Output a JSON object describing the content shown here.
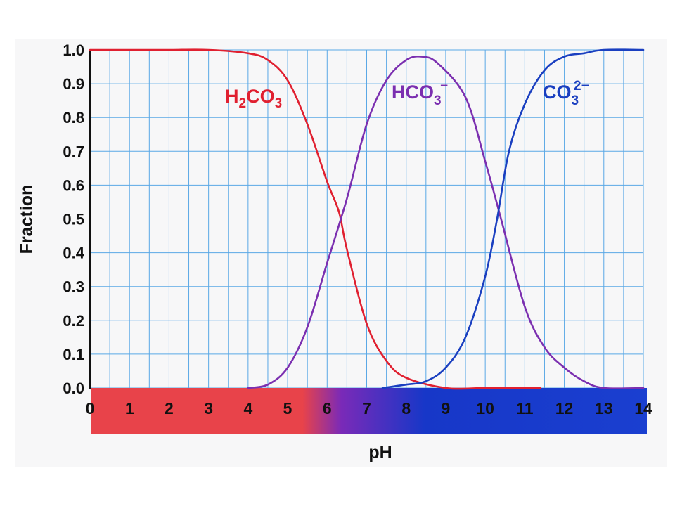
{
  "chart_data": {
    "type": "line",
    "xlabel": "pH",
    "ylabel": "Fraction",
    "xlim": [
      0,
      14
    ],
    "ylim": [
      0,
      1.0
    ],
    "x_ticks": [
      "0",
      "1",
      "2",
      "3",
      "4",
      "5",
      "6",
      "7",
      "8",
      "9",
      "10",
      "11",
      "12",
      "13",
      "14"
    ],
    "y_ticks": [
      "0.0",
      "0.1",
      "0.2",
      "0.3",
      "0.4",
      "0.5",
      "0.6",
      "0.7",
      "0.8",
      "0.9",
      "1.0"
    ],
    "grid": true,
    "color_bar": [
      "#e8434a",
      "#e8434a",
      "#7a2ab8",
      "#1737c8",
      "#1a3fd0"
    ],
    "series": [
      {
        "name": "H2CO3",
        "color": "#e02030",
        "x": [
          0,
          1,
          2,
          3,
          4,
          4.5,
          5,
          5.5,
          6,
          6.3,
          6.5,
          7,
          7.5,
          8,
          9,
          10,
          11,
          11.4
        ],
        "values": [
          1.0,
          1.0,
          1.0,
          1.0,
          0.99,
          0.97,
          0.91,
          0.78,
          0.61,
          0.52,
          0.41,
          0.19,
          0.08,
          0.03,
          0.0,
          0.0,
          0.0,
          0.0
        ]
      },
      {
        "name": "HCO3-",
        "color": "#7b2fb0",
        "x": [
          4,
          4.5,
          5,
          5.5,
          6,
          6.5,
          7,
          7.5,
          8,
          8.4,
          8.8,
          9.5,
          10,
          10.4,
          11,
          11.5,
          12,
          12.5,
          13,
          14
        ],
        "values": [
          0.0,
          0.01,
          0.06,
          0.18,
          0.37,
          0.56,
          0.78,
          0.91,
          0.97,
          0.98,
          0.96,
          0.86,
          0.67,
          0.5,
          0.24,
          0.12,
          0.06,
          0.02,
          0.0,
          0.0
        ]
      },
      {
        "name": "CO3 2-",
        "color": "#1a3fc0",
        "x": [
          7.4,
          8,
          8.5,
          9,
          9.5,
          10,
          10.3,
          10.6,
          11,
          11.5,
          12,
          12.5,
          13,
          14
        ],
        "values": [
          0.0,
          0.01,
          0.02,
          0.06,
          0.15,
          0.33,
          0.5,
          0.7,
          0.84,
          0.94,
          0.98,
          0.99,
          1.0,
          1.0
        ]
      }
    ],
    "annotations": {
      "h2co3": {
        "main": "H",
        "sub": "2",
        "rest": "CO",
        "sub2": "3"
      },
      "hco3": {
        "main": "HCO",
        "sub": "3",
        "sup": "−"
      },
      "co3": {
        "main": "CO",
        "sub": "3",
        "sup": "2−"
      }
    }
  }
}
